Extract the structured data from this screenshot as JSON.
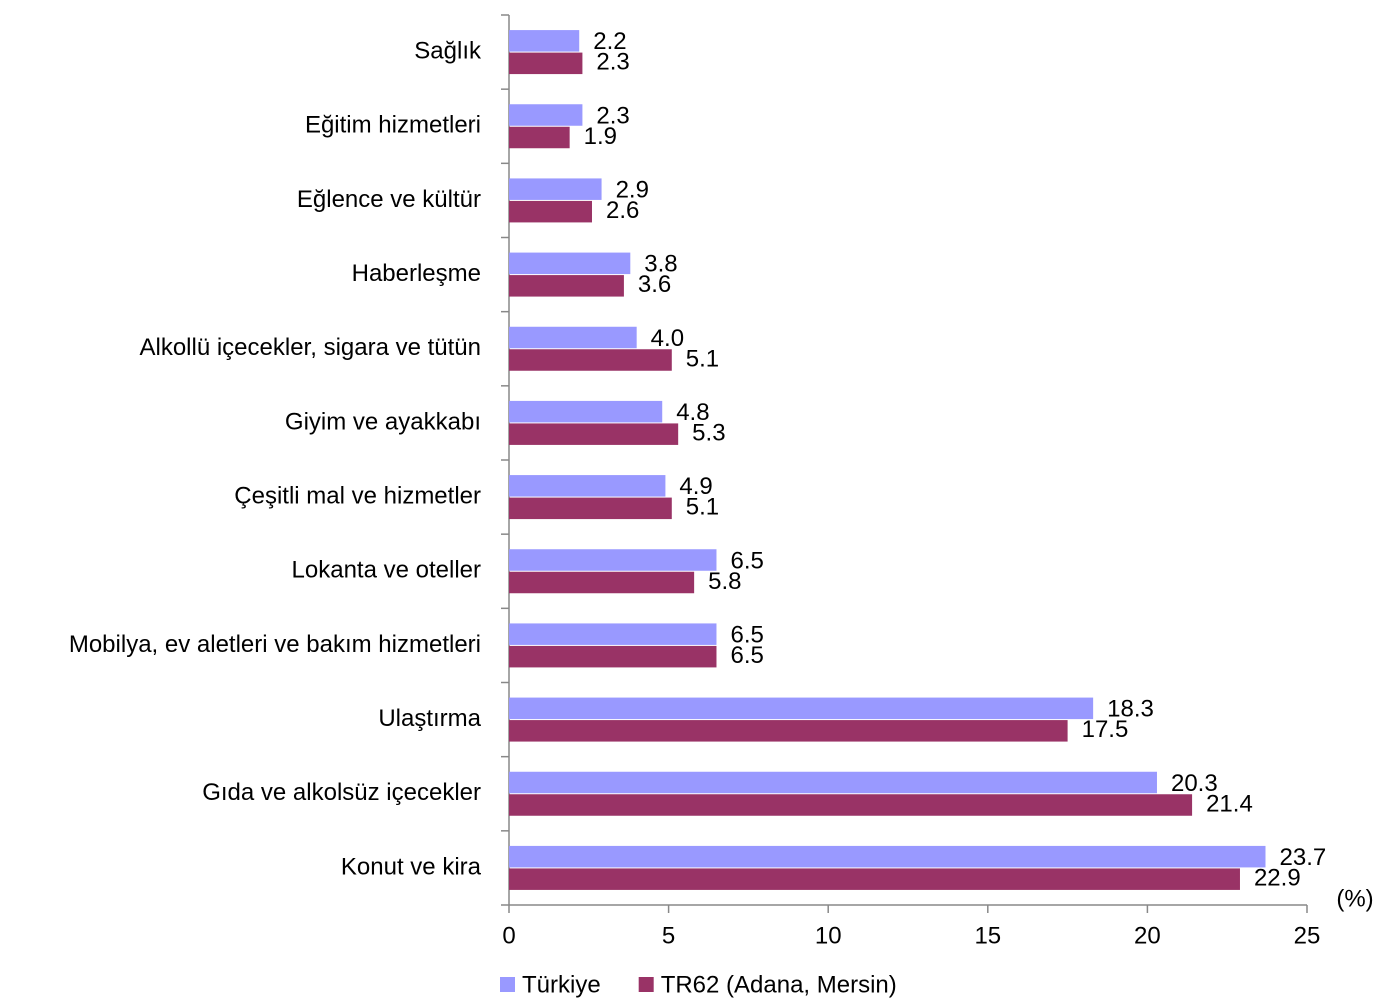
{
  "chart_data": {
    "type": "bar",
    "orientation": "horizontal",
    "categories": [
      "Sağlık",
      "Eğitim hizmetleri",
      "Eğlence ve kültür",
      "Haberleşme",
      "Alkollü içecekler, sigara ve tütün",
      "Giyim ve ayakkabı",
      "Çeşitli mal ve hizmetler",
      "Lokanta ve oteller",
      "Mobilya, ev aletleri ve bakım hizmetleri",
      "Ulaştırma",
      "Gıda ve alkolsüz içecekler",
      "Konut ve kira"
    ],
    "series": [
      {
        "name": "Türkiye",
        "color": "#9999ff",
        "values": [
          2.2,
          2.3,
          2.9,
          3.8,
          4.0,
          4.8,
          4.9,
          6.5,
          6.5,
          18.3,
          20.3,
          23.7
        ],
        "value_labels": [
          "2.2",
          "2.3",
          "2.9",
          "3.8",
          "4.0",
          "4.8",
          "4.9",
          "6.5",
          "6.5",
          "18.3",
          "20.3",
          "23.7"
        ]
      },
      {
        "name": "TR62 (Adana, Mersin)",
        "color": "#993366",
        "values": [
          2.3,
          1.9,
          2.6,
          3.6,
          5.1,
          5.3,
          5.1,
          5.8,
          6.5,
          17.5,
          21.4,
          22.9
        ],
        "value_labels": [
          "2.3",
          "1.9",
          "2.6",
          "3.6",
          "5.1",
          "5.3",
          "5.1",
          "5.8",
          "6.5",
          "17.5",
          "21.4",
          "22.9"
        ]
      }
    ],
    "x_axis_label": "(%)",
    "xlim": [
      0,
      25
    ],
    "xticks": [
      0,
      5,
      10,
      15,
      20,
      25
    ],
    "grid": false,
    "legend": "bottom"
  }
}
